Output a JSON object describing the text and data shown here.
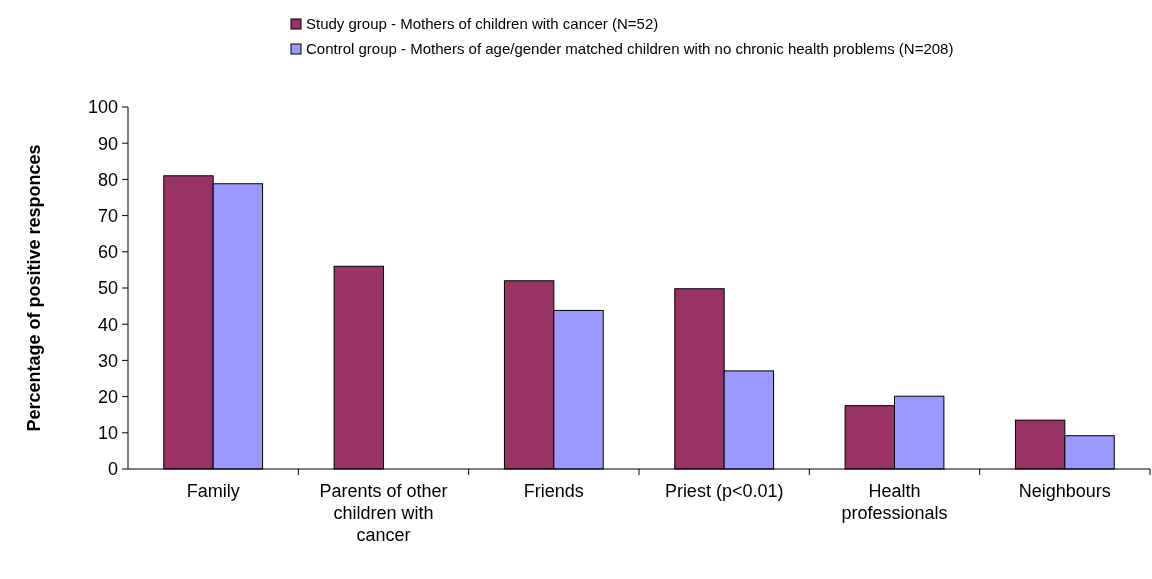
{
  "chart_data": {
    "type": "bar",
    "ylabel": "Percentage of positive responces",
    "categories": [
      "Family",
      "Parents of other children with cancer",
      "Friends",
      "Priest (p<0.01)",
      "Health professionals",
      "Neighbours"
    ],
    "series": [
      {
        "name": "Study group - Mothers of children with cancer (N=52)",
        "color": "#993366",
        "values": [
          81,
          56,
          52,
          49.8,
          17.5,
          13.5
        ]
      },
      {
        "name": "Control group - Mothers of age/gender matched children with no chronic health problems (N=208)",
        "color": "#9999ff",
        "values": [
          78.8,
          null,
          43.8,
          27.1,
          20.1,
          9.2
        ]
      }
    ],
    "ylim": [
      0,
      100
    ],
    "yticks": [
      0,
      10,
      20,
      30,
      40,
      50,
      60,
      70,
      80,
      90,
      100
    ],
    "grid": false,
    "legend": "top"
  }
}
